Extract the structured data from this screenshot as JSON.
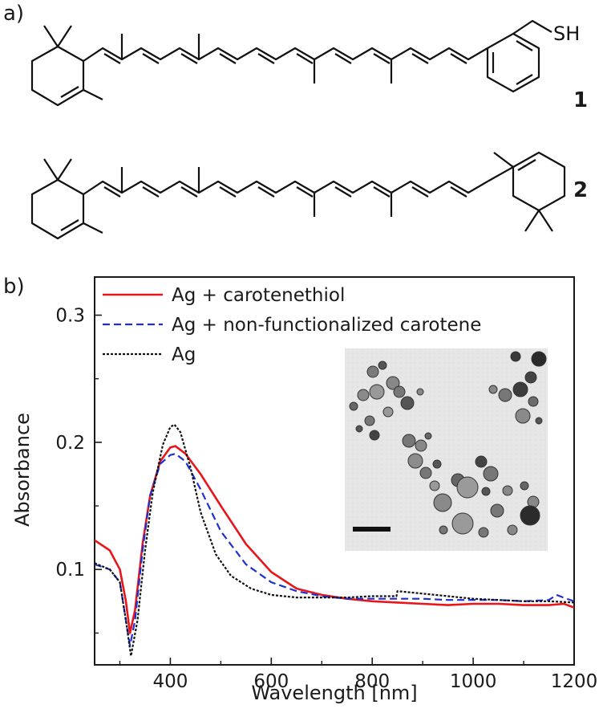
{
  "figure": {
    "panel_a_label": "a)",
    "panel_b_label": "b)",
    "compound_1_label": "1",
    "compound_2_label": "2",
    "thiol_group": "SH"
  },
  "chart_data": {
    "type": "line",
    "xlabel": "Wavelength [nm]",
    "ylabel": "Absorbance",
    "xlim": [
      250,
      1200
    ],
    "ylim": [
      0.025,
      0.33
    ],
    "xticks": [
      400,
      600,
      800,
      1000,
      1200
    ],
    "yticks": [
      0.1,
      0.2,
      0.3
    ],
    "xtick_labels": [
      "400",
      "600",
      "800",
      "1000",
      "1200"
    ],
    "ytick_labels": [
      "0.1",
      "0.2",
      "0.3"
    ],
    "grid": false,
    "legend_position": "top-left",
    "inset": "TEM image of silver nanoparticles with scale bar",
    "series": [
      {
        "name": "Ag + carotenethiol",
        "color": "#e8161b",
        "dash": "solid",
        "x": [
          250,
          280,
          300,
          312,
          320,
          330,
          345,
          360,
          380,
          400,
          410,
          430,
          460,
          500,
          550,
          600,
          650,
          700,
          750,
          800,
          850,
          900,
          950,
          1000,
          1050,
          1100,
          1150,
          1180,
          1200
        ],
        "y": [
          0.123,
          0.115,
          0.1,
          0.075,
          0.05,
          0.068,
          0.12,
          0.158,
          0.185,
          0.196,
          0.197,
          0.191,
          0.175,
          0.15,
          0.12,
          0.098,
          0.085,
          0.08,
          0.077,
          0.075,
          0.074,
          0.073,
          0.072,
          0.073,
          0.073,
          0.072,
          0.072,
          0.073,
          0.07
        ]
      },
      {
        "name": "Ag + non-functionalized carotene",
        "color": "#1f2fd0",
        "dash": "dashed",
        "x": [
          250,
          280,
          300,
          312,
          320,
          330,
          345,
          360,
          380,
          400,
          410,
          430,
          460,
          500,
          550,
          600,
          650,
          700,
          750,
          800,
          850,
          900,
          950,
          1000,
          1050,
          1100,
          1150,
          1165,
          1185,
          1200
        ],
        "y": [
          0.104,
          0.1,
          0.09,
          0.06,
          0.04,
          0.06,
          0.115,
          0.158,
          0.183,
          0.19,
          0.191,
          0.185,
          0.163,
          0.13,
          0.104,
          0.09,
          0.083,
          0.079,
          0.077,
          0.077,
          0.077,
          0.077,
          0.076,
          0.076,
          0.076,
          0.075,
          0.076,
          0.08,
          0.077,
          0.075
        ]
      },
      {
        "name": "Ag",
        "color": "#111111",
        "dash": "dotted",
        "x": [
          250,
          280,
          300,
          312,
          322,
          335,
          350,
          365,
          385,
          400,
          408,
          420,
          440,
          460,
          490,
          520,
          560,
          600,
          650,
          700,
          750,
          800,
          848,
          850,
          900,
          950,
          1000,
          1050,
          1100,
          1150,
          1200
        ],
        "y": [
          0.105,
          0.1,
          0.09,
          0.06,
          0.032,
          0.06,
          0.115,
          0.16,
          0.198,
          0.212,
          0.214,
          0.208,
          0.18,
          0.145,
          0.112,
          0.095,
          0.085,
          0.08,
          0.078,
          0.078,
          0.078,
          0.079,
          0.079,
          0.083,
          0.081,
          0.079,
          0.077,
          0.076,
          0.075,
          0.075,
          0.074
        ]
      }
    ]
  }
}
